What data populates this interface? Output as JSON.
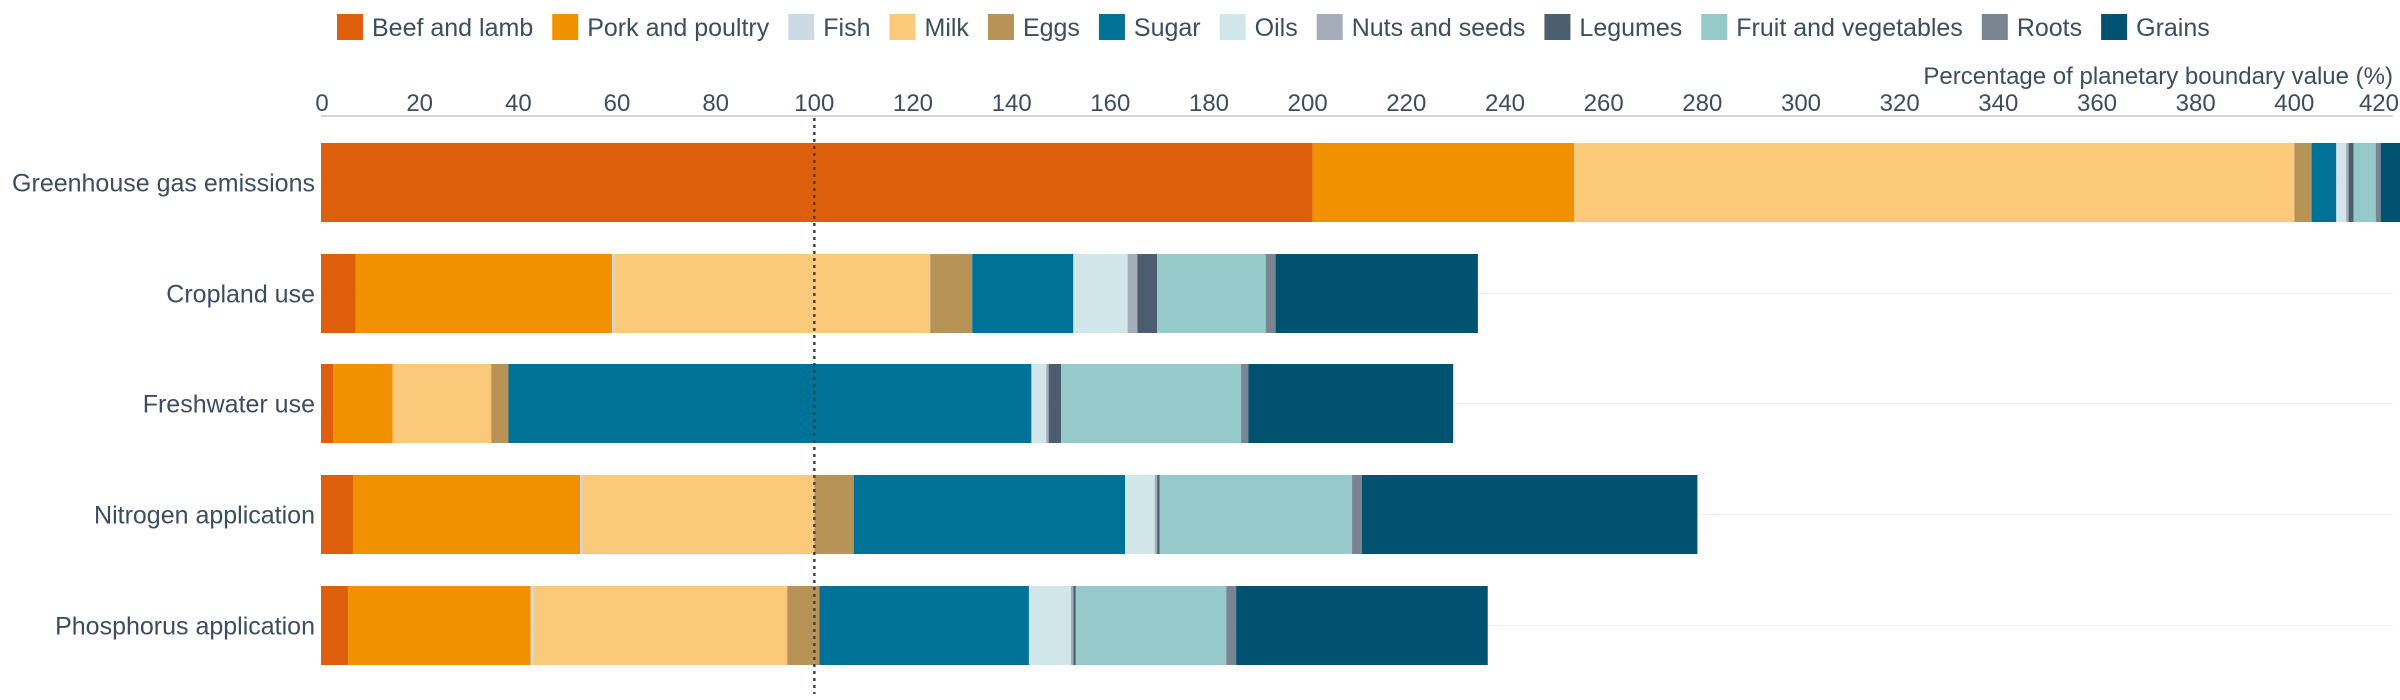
{
  "chart_data": {
    "type": "bar",
    "orientation": "horizontal",
    "stacked": true,
    "xlabel": "Percentage of planetary boundary value (%)",
    "xlim": [
      0,
      420
    ],
    "xticks": [
      0,
      20,
      40,
      60,
      80,
      100,
      120,
      140,
      160,
      180,
      200,
      220,
      240,
      260,
      280,
      300,
      320,
      340,
      360,
      380,
      400,
      420
    ],
    "reference_line": 100,
    "legend_position": "top",
    "categories": [
      "Greenhouse gas emissions",
      "Cropland use",
      "Freshwater use",
      "Nitrogen application",
      "Phosphorus application"
    ],
    "series": [
      {
        "name": "Beef and lamb",
        "color": "#de5f0b",
        "values": [
          201,
          7,
          2.5,
          6.5,
          5.5
        ]
      },
      {
        "name": "Pork and poultry",
        "color": "#f29100",
        "values": [
          53,
          52,
          12,
          46,
          37
        ]
      },
      {
        "name": "Fish",
        "color": "#ccd9e4",
        "values": [
          0,
          0.5,
          0,
          0.5,
          0.5
        ]
      },
      {
        "name": "Milk",
        "color": "#fbc97a",
        "values": [
          146,
          64,
          20,
          47,
          51.5
        ]
      },
      {
        "name": "Eggs",
        "color": "#b89358",
        "values": [
          3.5,
          8.5,
          3.5,
          8,
          6.5
        ]
      },
      {
        "name": "Sugar",
        "color": "#007297",
        "values": [
          5,
          20.5,
          106,
          55,
          42.5
        ]
      },
      {
        "name": "Oils",
        "color": "#d1e6e8",
        "values": [
          2,
          11,
          3,
          6,
          8.5
        ]
      },
      {
        "name": "Nuts and seeds",
        "color": "#a4adb9",
        "values": [
          0.5,
          2,
          0.5,
          0.5,
          0.5
        ]
      },
      {
        "name": "Legumes",
        "color": "#4d5d70",
        "values": [
          1,
          4,
          2.5,
          0.5,
          0.5
        ]
      },
      {
        "name": "Fruit and vegetables",
        "color": "#96c9c9",
        "values": [
          4.5,
          22,
          36.5,
          39,
          30.5
        ]
      },
      {
        "name": "Roots",
        "color": "#7b8491",
        "values": [
          1,
          2,
          1.5,
          2,
          2
        ]
      },
      {
        "name": "Grains",
        "color": "#005270",
        "values": [
          6,
          41,
          41.5,
          68,
          51
        ]
      }
    ]
  }
}
